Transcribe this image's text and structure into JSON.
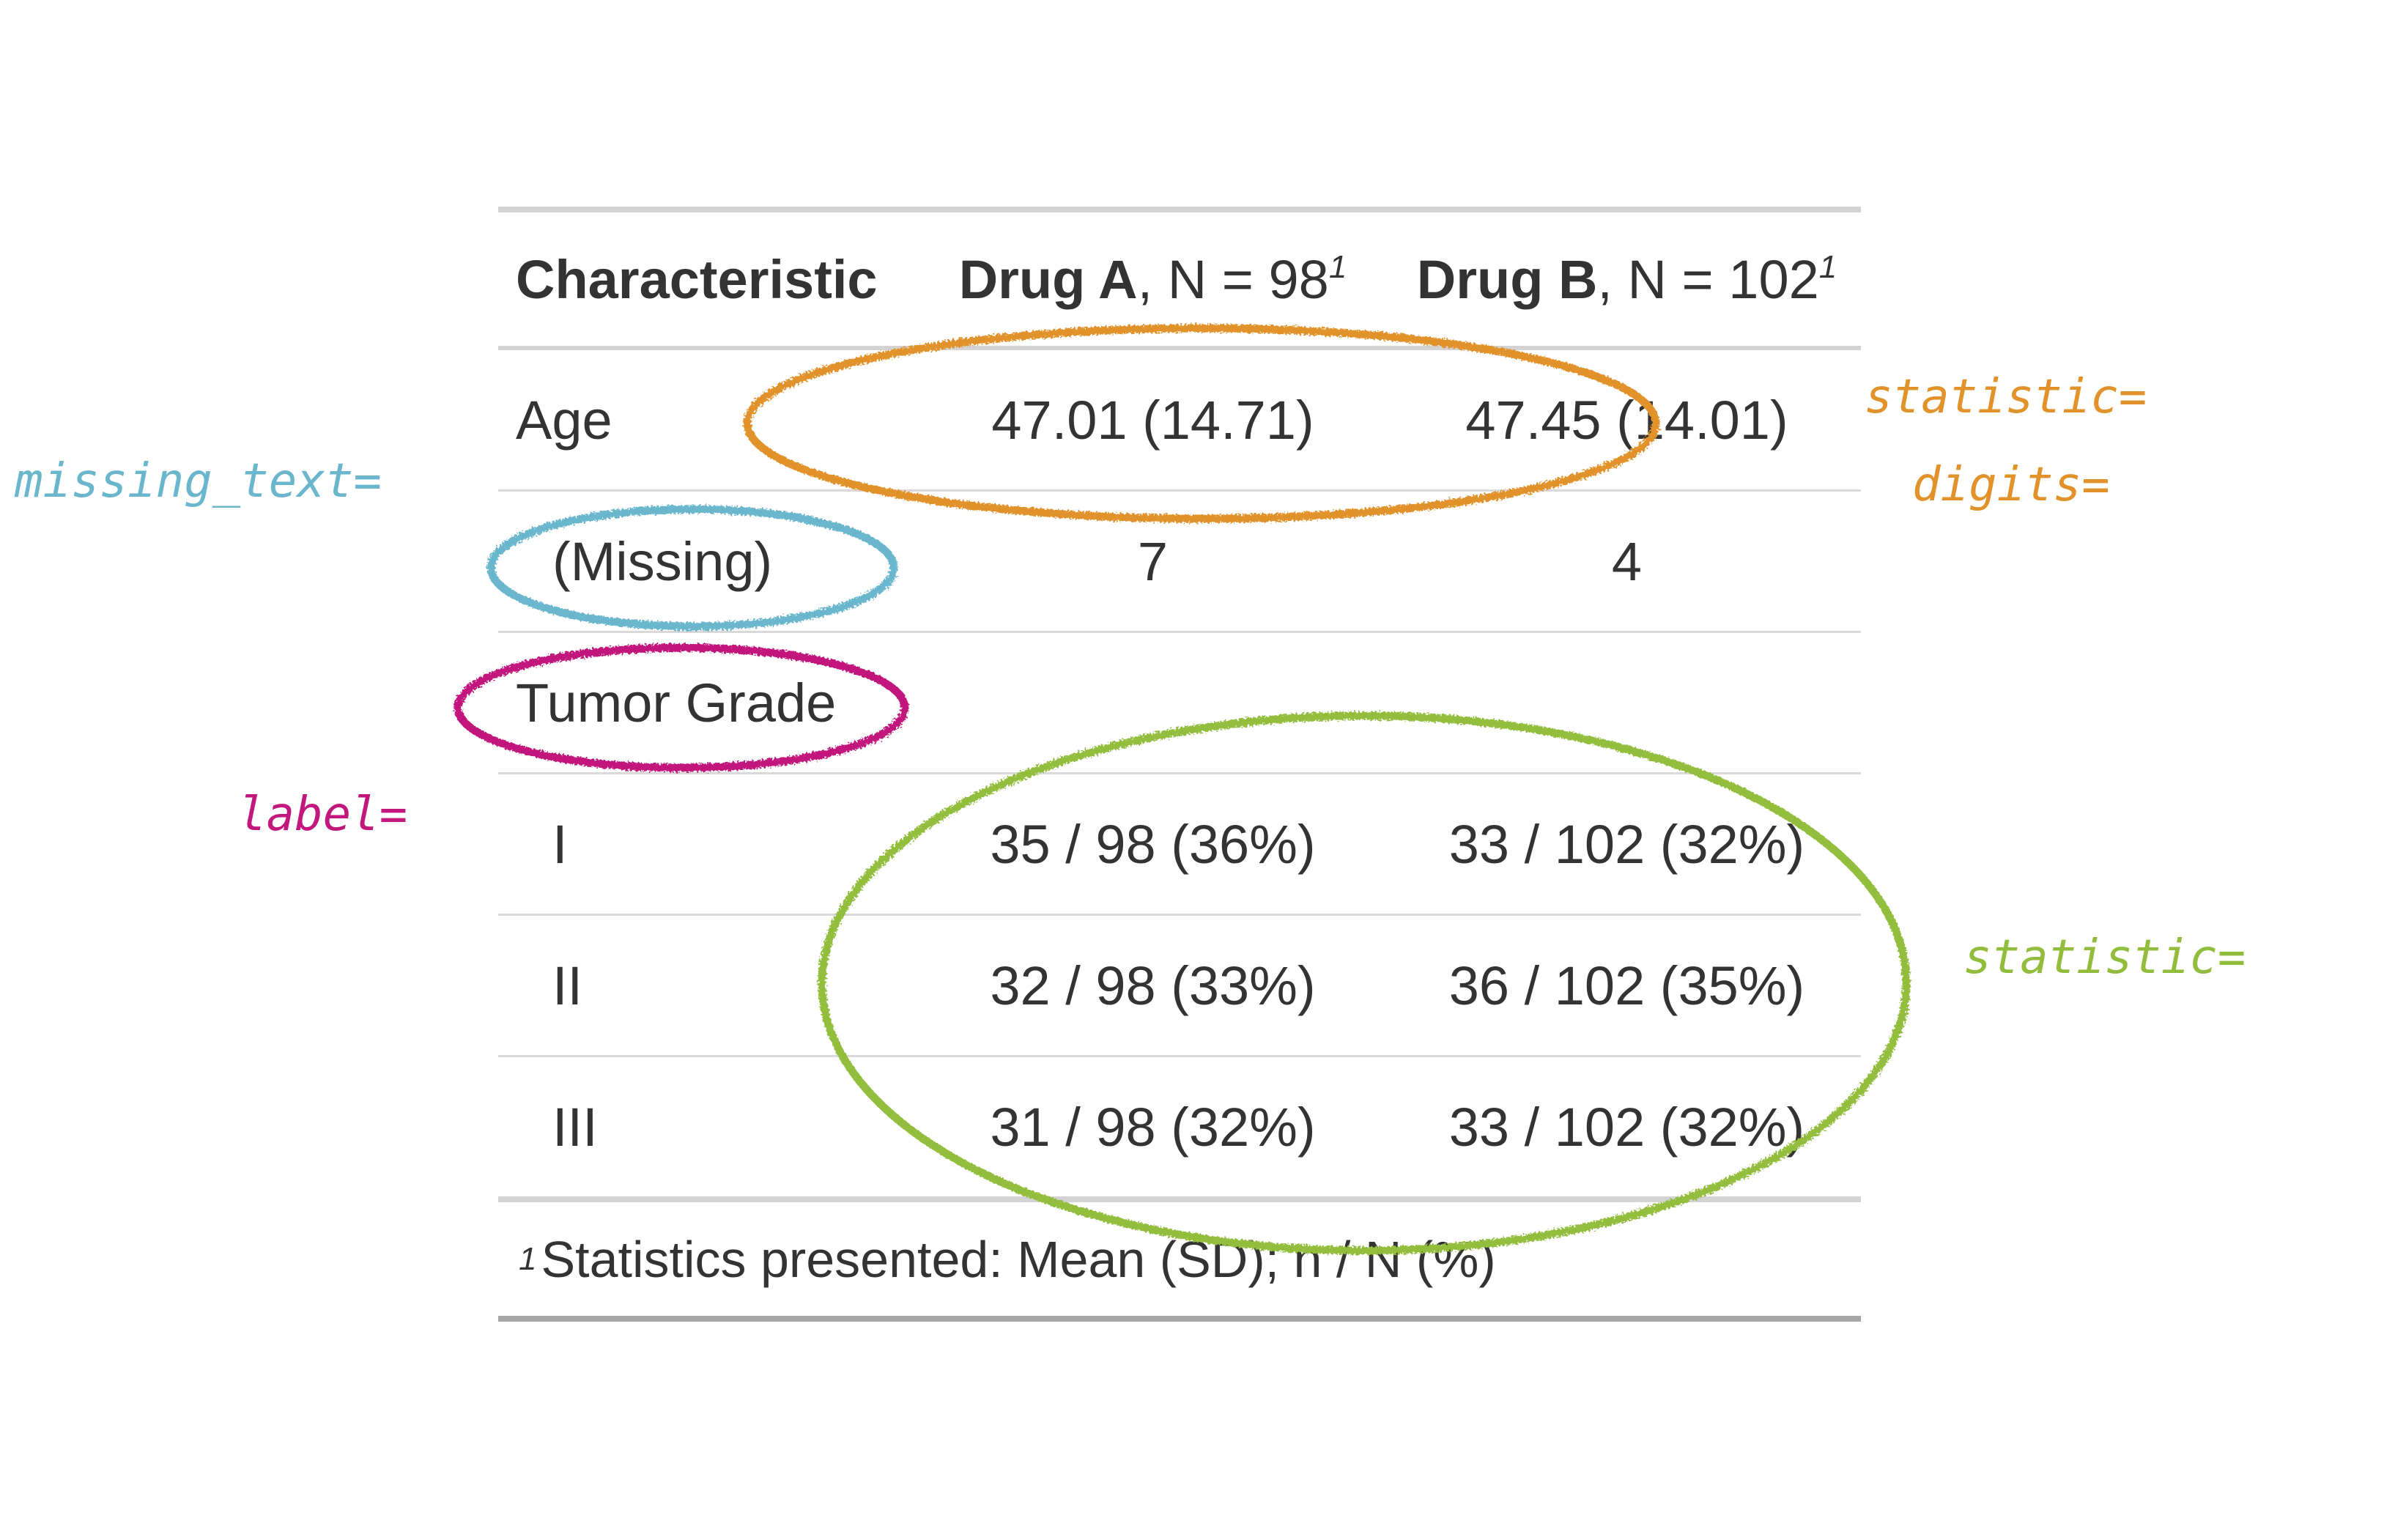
{
  "colors": {
    "missing": "#6ab6cd",
    "label": "#c2187d",
    "statistic_digits": "#e1922a",
    "statistic": "#92bd3c"
  },
  "table": {
    "headers": {
      "characteristic": "Characteristic",
      "drug_a_name": "Drug A",
      "drug_a_n": ", N = 98",
      "drug_b_name": "Drug B",
      "drug_b_n": ", N = 102",
      "footnote_marker": "1"
    },
    "rows": [
      {
        "label": "Age",
        "a": "47.01 (14.71)",
        "b": "47.45 (14.01)"
      },
      {
        "label": "(Missing)",
        "a": "7",
        "b": "4"
      },
      {
        "label": "Tumor Grade",
        "a": "",
        "b": ""
      },
      {
        "label": "I",
        "a": "35 / 98 (36%)",
        "b": "33 / 102 (32%)"
      },
      {
        "label": "II",
        "a": "32 / 98 (33%)",
        "b": "36 / 102 (35%)"
      },
      {
        "label": "III",
        "a": "31 / 98 (32%)",
        "b": "33 / 102 (32%)"
      }
    ],
    "footnote": "Statistics presented: Mean (SD); n / N (%)"
  },
  "annotations": {
    "missing_text": "missing_text=",
    "label": "label=",
    "statistic_top": "statistic=",
    "digits": "digits=",
    "statistic_bottom": "statistic="
  }
}
